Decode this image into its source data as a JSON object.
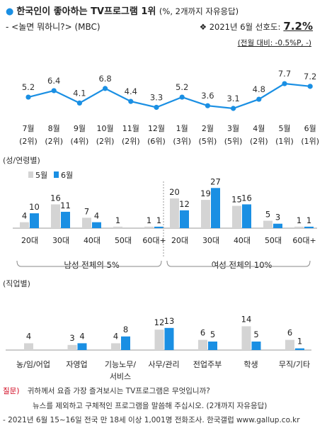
{
  "header": {
    "bullet": "●",
    "title": "한국인이 좋아하는 TV프로그램 1위",
    "title_note": "(%, 2개까지 자유응답)",
    "subtitle": "- <놀면 뭐하니?> (MBC)",
    "pref_icon": "❖",
    "pref_label": "2021년 6월 선호도:",
    "pref_value": "7.2%",
    "change": "(전월 대비: -0.5%P, -)"
  },
  "colors": {
    "accent": "#1a8fe3",
    "prev": "#d4d4d4",
    "line": "#1a8fe3"
  },
  "chart_data": [
    {
      "type": "line",
      "x": [
        "7월",
        "8월",
        "9월",
        "10월",
        "11월",
        "12월",
        "1월",
        "2월",
        "3월",
        "4월",
        "5월",
        "6월"
      ],
      "ranks": [
        "(2위)",
        "(2위)",
        "(4위)",
        "(2위)",
        "(2위)",
        "(6위)",
        "(3위)",
        "(5위)",
        "(5위)",
        "(2위)",
        "(1위)",
        "(1위)"
      ],
      "values": [
        5.2,
        6.4,
        4.1,
        6.8,
        4.4,
        3.3,
        5.2,
        3.6,
        3.1,
        4.8,
        7.7,
        7.2
      ],
      "labels": [
        "5.2",
        "6.4",
        "4.1",
        "6.8",
        "4.4",
        "3.3",
        "5.2",
        "3.6",
        "3.1",
        "4.8",
        "7.7",
        "7.2"
      ]
    },
    {
      "type": "bar",
      "section_label": "(성/연령별)",
      "legend": [
        "5월",
        "6월"
      ],
      "groups": [
        {
          "categories": [
            "20대",
            "30대",
            "40대",
            "50대",
            "60대+"
          ],
          "may": [
            4,
            16,
            7,
            1,
            1
          ],
          "june": [
            10,
            11,
            4,
            0,
            1
          ],
          "may_labels": [
            "4",
            "16",
            "7",
            "1",
            "1"
          ],
          "june_labels": [
            "10",
            "11",
            "4",
            "",
            "1"
          ],
          "caption": "남성 전체의 5%"
        },
        {
          "categories": [
            "20대",
            "30대",
            "40대",
            "50대",
            "60대+"
          ],
          "may": [
            20,
            19,
            15,
            5,
            1
          ],
          "june": [
            12,
            27,
            16,
            3,
            1
          ],
          "may_labels": [
            "20",
            "19",
            "15",
            "5",
            "1"
          ],
          "june_labels": [
            "12",
            "27",
            "16",
            "3",
            "1"
          ],
          "caption": "여성 전체의 10%"
        }
      ]
    },
    {
      "type": "bar",
      "section_label": "(직업별)",
      "categories": [
        "농/임/어업",
        "자영업",
        "기능노무/\n서비스",
        "사무/관리",
        "전업주부",
        "학생",
        "무직/기타"
      ],
      "may": [
        4,
        3,
        4,
        12,
        6,
        14,
        6
      ],
      "june": [
        0,
        4,
        8,
        13,
        5,
        5,
        1
      ],
      "may_labels": [
        "4",
        "3",
        "4",
        "12",
        "6",
        "14",
        "6"
      ],
      "june_labels": [
        "",
        "4",
        "8",
        "13",
        "5",
        "5",
        "1"
      ]
    }
  ],
  "footnote": {
    "q_label": "질문)",
    "q_line1": "귀하께서 요즘 가장 즐겨보시는 TV프로그램은 무엇입니까?",
    "q_line2": "뉴스를 제외하고 구체적인 프로그램을 말씀해 주십시오. (2개까지 자유응답)",
    "source": "- 2021년 6월 15~16일 전국 만 18세 이상 1,001명 전화조사. 한국갤럽 www.gallup.co.kr"
  }
}
